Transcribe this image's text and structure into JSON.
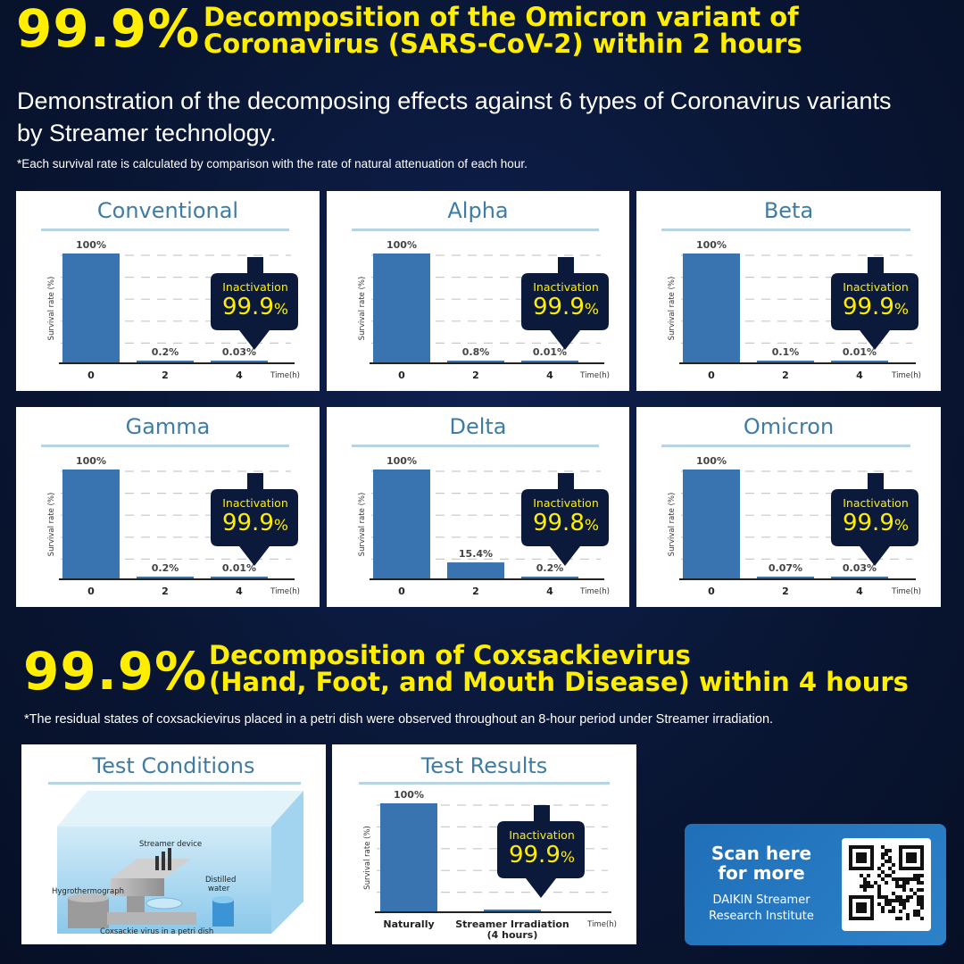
{
  "header1": {
    "percent": "99.9%",
    "title_line1": "Decomposition of the Omicron variant of",
    "title_line2": "Coronavirus (SARS-CoV-2) within 2 hours"
  },
  "subtitle": {
    "line1": "Demonstration of the decomposing effects against 6 types of Coronavirus variants",
    "line2": "by Streamer technology."
  },
  "footnote1": "*Each survival rate is calculated by comparison with  the rate of natural attenuation of each hour.",
  "header2": {
    "percent": "99.9%",
    "title_line1": "Decomposition of Coxsackievirus",
    "title_line2": "(Hand, Foot, and Mouth Disease) within 4 hours"
  },
  "footnote2": "*The residual states of coxsackievirus placed in a petri dish were observed throughout an 8-hour period under Streamer irradiation.",
  "test_conditions": {
    "title": "Test Conditions",
    "labels": {
      "device": "Streamer device",
      "hygro": "Hygrothermograph",
      "water_line1": "Distilled",
      "water_line2": "water",
      "dish": "Coxsackie virus in a petri dish"
    }
  },
  "qr": {
    "line1": "Scan here",
    "line2": "for more",
    "line3": "DAIKIN Streamer",
    "line4": "Research Institute"
  },
  "colors": {
    "accent_yellow": "#ffee00",
    "bar_blue": "#3a74b0",
    "panel_title_blue": "#3f7ca3",
    "badge_navy": "#0b1a3a"
  },
  "chart_data": [
    {
      "type": "bar",
      "title": "Conventional",
      "ylabel": "Survival rate (%)",
      "xlabel": "Time(h)",
      "categories": [
        "0",
        "2",
        "4"
      ],
      "values": [
        100,
        0.2,
        0.03
      ],
      "value_labels": [
        "100%",
        "0.2%",
        "0.03%"
      ],
      "badge": {
        "label": "Inactivation",
        "value": "99.9",
        "unit": "%"
      },
      "ylim": [
        0,
        100
      ]
    },
    {
      "type": "bar",
      "title": "Alpha",
      "ylabel": "Survival rate (%)",
      "xlabel": "Time(h)",
      "categories": [
        "0",
        "2",
        "4"
      ],
      "values": [
        100,
        0.8,
        0.01
      ],
      "value_labels": [
        "100%",
        "0.8%",
        "0.01%"
      ],
      "badge": {
        "label": "Inactivation",
        "value": "99.9",
        "unit": "%"
      },
      "ylim": [
        0,
        100
      ]
    },
    {
      "type": "bar",
      "title": "Beta",
      "ylabel": "Survival rate (%)",
      "xlabel": "Time(h)",
      "categories": [
        "0",
        "2",
        "4"
      ],
      "values": [
        100,
        0.1,
        0.01
      ],
      "value_labels": [
        "100%",
        "0.1%",
        "0.01%"
      ],
      "badge": {
        "label": "Inactivation",
        "value": "99.9",
        "unit": "%"
      },
      "ylim": [
        0,
        100
      ]
    },
    {
      "type": "bar",
      "title": "Gamma",
      "ylabel": "Survival rate (%)",
      "xlabel": "Time(h)",
      "categories": [
        "0",
        "2",
        "4"
      ],
      "values": [
        100,
        0.2,
        0.01
      ],
      "value_labels": [
        "100%",
        "0.2%",
        "0.01%"
      ],
      "badge": {
        "label": "Inactivation",
        "value": "99.9",
        "unit": "%"
      },
      "ylim": [
        0,
        100
      ]
    },
    {
      "type": "bar",
      "title": "Delta",
      "ylabel": "Survival rate (%)",
      "xlabel": "Time(h)",
      "categories": [
        "0",
        "2",
        "4"
      ],
      "values": [
        100,
        15.4,
        0.2
      ],
      "value_labels": [
        "100%",
        "15.4%",
        "0.2%"
      ],
      "badge": {
        "label": "Inactivation",
        "value": "99.8",
        "unit": "%"
      },
      "ylim": [
        0,
        100
      ]
    },
    {
      "type": "bar",
      "title": "Omicron",
      "ylabel": "Survival rate (%)",
      "xlabel": "Time(h)",
      "categories": [
        "0",
        "2",
        "4"
      ],
      "values": [
        100,
        0.07,
        0.03
      ],
      "value_labels": [
        "100%",
        "0.07%",
        "0.03%"
      ],
      "badge": {
        "label": "Inactivation",
        "value": "99.9",
        "unit": "%"
      },
      "ylim": [
        0,
        100
      ]
    },
    {
      "type": "bar",
      "title": "Test Results",
      "ylabel": "Survival rate (%)",
      "xlabel": "Time(h)",
      "categories": [
        "Naturally",
        "Streamer Irradiation\n(4 hours)"
      ],
      "values": [
        100,
        0.1
      ],
      "value_labels": [
        "100%"
      ],
      "badge": {
        "label": "Inactivation",
        "value": "99.9",
        "unit": "%"
      },
      "ylim": [
        0,
        100
      ]
    }
  ]
}
